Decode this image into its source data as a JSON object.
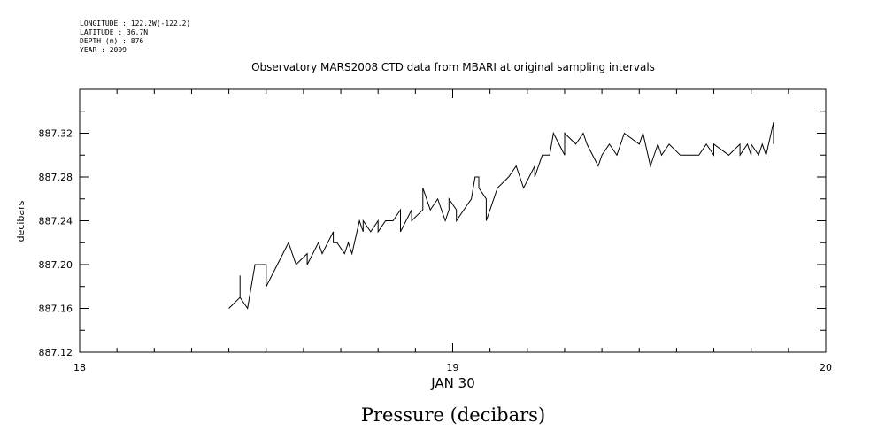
{
  "header": {
    "longitude": "LONGITUDE : 122.2W(-122.2)",
    "latitude": "LATITUDE : 36.7N",
    "depth": "DEPTH (m) : 876",
    "year": "YEAR : 2009"
  },
  "chart_data": {
    "type": "line",
    "title": "Observatory MARS2008 CTD data from MBARI at original sampling intervals",
    "xlabel": "Pressure (decibars)",
    "ylabel": "decibars",
    "x_sublabel": "JAN 30",
    "xlim": [
      18,
      20
    ],
    "ylim": [
      887.12,
      887.36
    ],
    "x_ticks": [
      "18",
      "19",
      "20"
    ],
    "y_ticks": [
      "887.12",
      "887.16",
      "887.20",
      "887.24",
      "887.28",
      "887.32"
    ],
    "series": [
      {
        "x": [
          18.4,
          18.43,
          18.43,
          18.43,
          18.45,
          18.47,
          18.5,
          18.5,
          18.53,
          18.56,
          18.58,
          18.61,
          18.61,
          18.64,
          18.65,
          18.68,
          18.68,
          18.69,
          18.71,
          18.72,
          18.73,
          18.75,
          18.76,
          18.76,
          18.78,
          18.8,
          18.8,
          18.82,
          18.84,
          18.86,
          18.86,
          18.89,
          18.89,
          18.92,
          18.92,
          18.94,
          18.96,
          18.98,
          18.99,
          18.99,
          19.01,
          19.01,
          19.03,
          19.05,
          19.06,
          19.07,
          19.07,
          19.09,
          19.09,
          19.1,
          19.12,
          19.15,
          19.17,
          19.19,
          19.22,
          19.22,
          19.24,
          19.26,
          19.27,
          19.3,
          19.3,
          19.33,
          19.35,
          19.36,
          19.39,
          19.4,
          19.42,
          19.44,
          19.46,
          19.46,
          19.5,
          19.51,
          19.53,
          19.55,
          19.56,
          19.58,
          19.61,
          19.66,
          19.68,
          19.7,
          19.7,
          19.74,
          19.77,
          19.77,
          19.79,
          19.8,
          19.8,
          19.82,
          19.83,
          19.84,
          19.86,
          19.86
        ],
        "y": [
          887.16,
          887.17,
          887.19,
          887.17,
          887.16,
          887.2,
          887.2,
          887.18,
          887.2,
          887.22,
          887.2,
          887.21,
          887.2,
          887.22,
          887.21,
          887.23,
          887.22,
          887.22,
          887.21,
          887.22,
          887.21,
          887.24,
          887.23,
          887.24,
          887.23,
          887.24,
          887.23,
          887.24,
          887.24,
          887.25,
          887.23,
          887.25,
          887.24,
          887.25,
          887.27,
          887.25,
          887.26,
          887.24,
          887.25,
          887.26,
          887.25,
          887.24,
          887.25,
          887.26,
          887.28,
          887.28,
          887.27,
          887.26,
          887.24,
          887.25,
          887.27,
          887.28,
          887.29,
          887.27,
          887.29,
          887.28,
          887.3,
          887.3,
          887.32,
          887.3,
          887.32,
          887.31,
          887.32,
          887.31,
          887.29,
          887.3,
          887.31,
          887.3,
          887.32,
          887.32,
          887.31,
          887.32,
          887.29,
          887.31,
          887.3,
          887.31,
          887.3,
          887.3,
          887.31,
          887.3,
          887.31,
          887.3,
          887.31,
          887.3,
          887.31,
          887.3,
          887.31,
          887.3,
          887.31,
          887.3,
          887.33,
          887.31
        ]
      }
    ],
    "grid": false
  }
}
